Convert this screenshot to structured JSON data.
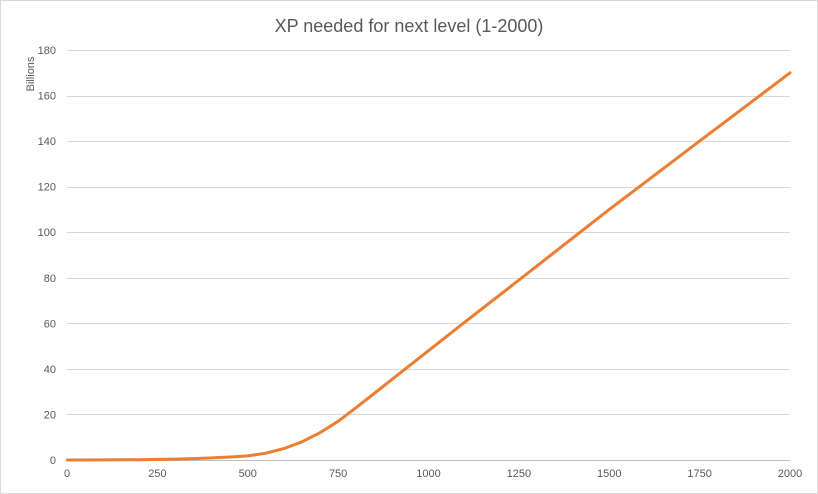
{
  "chart_data": {
    "type": "line",
    "title": "XP needed for next level (1-2000)",
    "xlabel": "",
    "ylabel": "Billions",
    "xlim": [
      0,
      2000
    ],
    "ylim": [
      0,
      180
    ],
    "x_ticks": [
      0,
      250,
      500,
      750,
      1000,
      1250,
      1500,
      1750,
      2000
    ],
    "y_ticks": [
      0,
      20,
      40,
      60,
      80,
      100,
      120,
      140,
      160,
      180
    ],
    "grid": true,
    "legend": "none",
    "series": [
      {
        "color": "#ED7D31",
        "x": [
          1,
          100,
          200,
          250,
          300,
          350,
          400,
          450,
          500,
          550,
          600,
          650,
          700,
          750,
          800,
          900,
          1000,
          1100,
          1250,
          1500,
          1750,
          2000
        ],
        "y": [
          0.0,
          0.05,
          0.15,
          0.25,
          0.4,
          0.6,
          0.9,
          1.3,
          1.8,
          3.0,
          5.0,
          8.0,
          12.0,
          17.0,
          23.0,
          35.5,
          48.0,
          60.5,
          79.0,
          110.0,
          140.0,
          170.0
        ]
      }
    ]
  }
}
